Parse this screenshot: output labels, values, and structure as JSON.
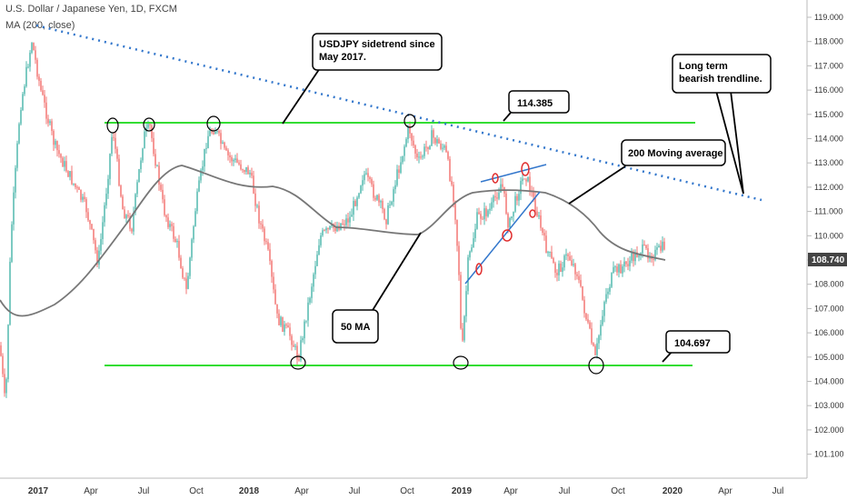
{
  "header": {
    "title": "U.S. Dollar / Japanese Yen, 1D, FXCM",
    "indicator": "MA (200, close)"
  },
  "chart_data": {
    "type": "candlestick",
    "y_ticks": [
      "119.000",
      "118.000",
      "117.000",
      "116.000",
      "115.000",
      "114.000",
      "113.000",
      "112.000",
      "111.000",
      "110.000",
      "109.000",
      "108.000",
      "107.000",
      "106.000",
      "105.000",
      "104.000",
      "103.000",
      "102.000",
      "101.100"
    ],
    "x_ticks": [
      "2017",
      "Apr",
      "Jul",
      "Oct",
      "2018",
      "Apr",
      "Jul",
      "Oct",
      "2019",
      "Apr",
      "Jul",
      "Oct",
      "2020",
      "Apr",
      "Jul"
    ],
    "last_price": "108.740",
    "ylim": [
      100.6,
      119.3
    ],
    "levels": [
      {
        "label": "114.385",
        "value": 114.385,
        "color": "#33dd33"
      },
      {
        "label": "104.697",
        "value": 104.697,
        "color": "#33dd33"
      }
    ],
    "annotations": [
      {
        "name": "sidetrend-callout",
        "lines": [
          "USDJPY sidetrend since",
          "May 2017."
        ]
      },
      {
        "name": "trendline-callout",
        "lines": [
          "Long term",
          "bearish trendline."
        ]
      },
      {
        "name": "ma200-callout",
        "lines": [
          "200 Moving average"
        ]
      },
      {
        "name": "ma50-callout",
        "lines": [
          "50 MA"
        ]
      },
      {
        "name": "level-high-callout",
        "lines": [
          "114.385"
        ]
      },
      {
        "name": "level-low-callout",
        "lines": [
          "104.697"
        ]
      }
    ],
    "colors": {
      "up": "#26a69a",
      "down": "#ef5350",
      "ma": "#777777",
      "trend": "#3377cc",
      "level": "#33dd33"
    }
  }
}
